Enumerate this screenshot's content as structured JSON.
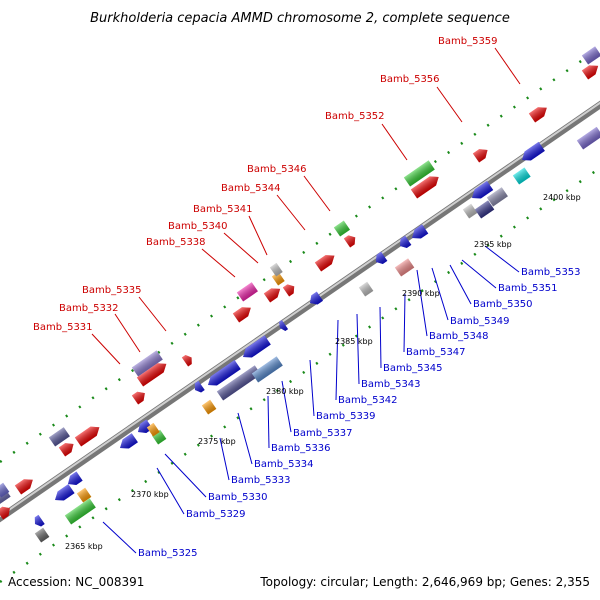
{
  "title": "Burkholderia cepacia AMMD chromosome 2, complete sequence",
  "footer": {
    "accession": "Accession: NC_008391",
    "topology": "Topology: circular; Length: 2,646,969 bp; Genes: 2,355"
  },
  "colors": {
    "backbone": "#888888",
    "ticks": "#1a8a1a",
    "forward_label": "#cc0000",
    "reverse_label": "#0000cc"
  },
  "ticks": [
    {
      "label": "2365 kbp"
    },
    {
      "label": "2370 kbp"
    },
    {
      "label": "2375 kbp"
    },
    {
      "label": "2380 kbp"
    },
    {
      "label": "2385 kbp"
    },
    {
      "label": "2390 kbp"
    },
    {
      "label": "2395 kbp"
    },
    {
      "label": "2400 kbp"
    }
  ],
  "forward_labels": [
    {
      "label": "Bamb_5359"
    },
    {
      "label": "Bamb_5356"
    },
    {
      "label": "Bamb_5352"
    },
    {
      "label": "Bamb_5346"
    },
    {
      "label": "Bamb_5344"
    },
    {
      "label": "Bamb_5341"
    },
    {
      "label": "Bamb_5340"
    },
    {
      "label": "Bamb_5338"
    },
    {
      "label": "Bamb_5335"
    },
    {
      "label": "Bamb_5332"
    },
    {
      "label": "Bamb_5331"
    }
  ],
  "reverse_labels": [
    {
      "label": "Bamb_5353"
    },
    {
      "label": "Bamb_5351"
    },
    {
      "label": "Bamb_5350"
    },
    {
      "label": "Bamb_5349"
    },
    {
      "label": "Bamb_5348"
    },
    {
      "label": "Bamb_5347"
    },
    {
      "label": "Bamb_5345"
    },
    {
      "label": "Bamb_5343"
    },
    {
      "label": "Bamb_5342"
    },
    {
      "label": "Bamb_5339"
    },
    {
      "label": "Bamb_5337"
    },
    {
      "label": "Bamb_5336"
    },
    {
      "label": "Bamb_5334"
    },
    {
      "label": "Bamb_5333"
    },
    {
      "label": "Bamb_5330"
    },
    {
      "label": "Bamb_5329"
    },
    {
      "label": "Bamb_5325"
    }
  ]
}
